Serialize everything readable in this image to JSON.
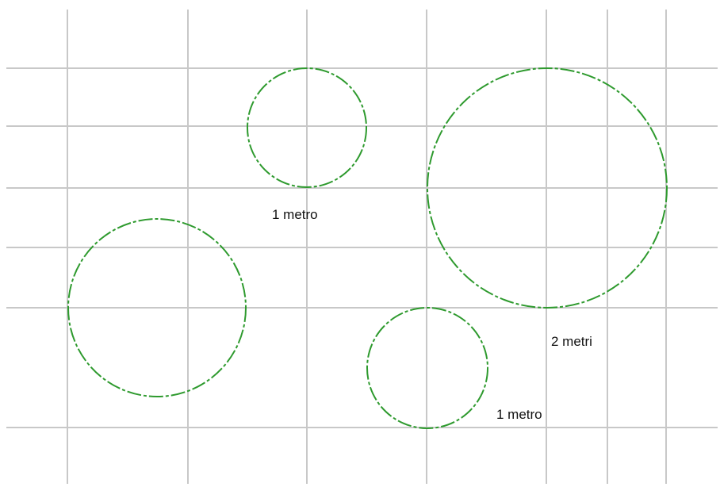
{
  "diagram": {
    "title": "",
    "circles": [
      {
        "id": "circle-small-top",
        "label": "1 metro"
      },
      {
        "id": "circle-left",
        "label": ""
      },
      {
        "id": "circle-large-right",
        "label": "2 metri"
      },
      {
        "id": "circle-bottom-middle",
        "label": "1 metro"
      }
    ],
    "colors": {
      "grid": "#c8c8c8",
      "circle": "#2e9a2e",
      "text": "#111111",
      "background": "#ffffff"
    }
  }
}
